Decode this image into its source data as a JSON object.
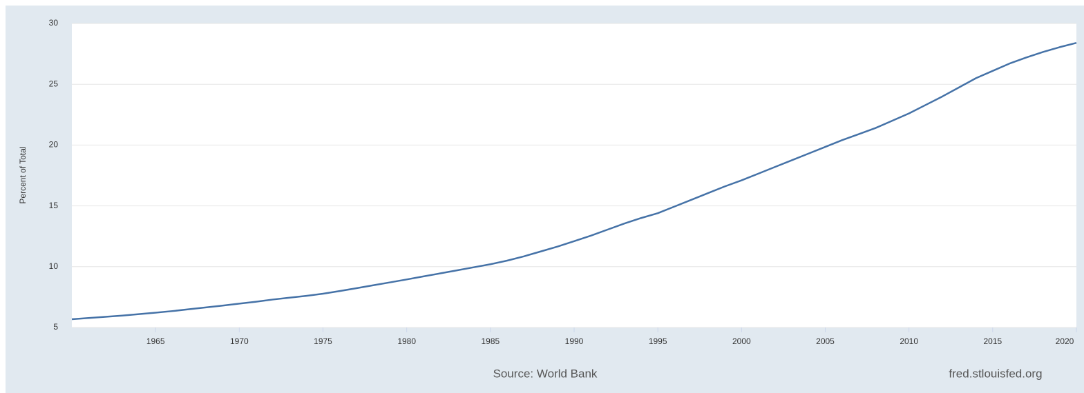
{
  "chart_data": {
    "type": "line",
    "y_label": "Percent of Total",
    "source": "Source: World Bank",
    "credit": "fred.stlouisfed.org",
    "x": [
      1960,
      1961,
      1962,
      1963,
      1964,
      1965,
      1966,
      1967,
      1968,
      1969,
      1970,
      1971,
      1972,
      1973,
      1974,
      1975,
      1976,
      1977,
      1978,
      1979,
      1980,
      1981,
      1982,
      1983,
      1984,
      1985,
      1986,
      1987,
      1988,
      1989,
      1990,
      1991,
      1992,
      1993,
      1994,
      1995,
      1996,
      1997,
      1998,
      1999,
      2000,
      2001,
      2002,
      2003,
      2004,
      2005,
      2006,
      2007,
      2008,
      2009,
      2010,
      2011,
      2012,
      2013,
      2014,
      2015,
      2016,
      2017,
      2018,
      2019,
      2020
    ],
    "series": [
      {
        "name": "Percent of Total",
        "color": "#4572a7",
        "values": [
          5.68,
          5.78,
          5.88,
          5.98,
          6.1,
          6.22,
          6.35,
          6.5,
          6.65,
          6.8,
          6.96,
          7.12,
          7.3,
          7.45,
          7.6,
          7.78,
          8.0,
          8.23,
          8.47,
          8.71,
          8.95,
          9.2,
          9.45,
          9.7,
          9.95,
          10.2,
          10.5,
          10.85,
          11.25,
          11.65,
          12.1,
          12.55,
          13.05,
          13.55,
          14.0,
          14.4,
          14.95,
          15.5,
          16.05,
          16.6,
          17.1,
          17.65,
          18.2,
          18.75,
          19.3,
          19.85,
          20.4,
          20.9,
          21.4,
          22.0,
          22.6,
          23.3,
          24.0,
          24.75,
          25.5,
          26.1,
          26.7,
          27.2,
          27.65,
          28.05,
          28.4
        ]
      }
    ],
    "xlim": [
      1960,
      2020
    ],
    "xticks": [
      1965,
      1970,
      1975,
      1980,
      1985,
      1990,
      1995,
      2000,
      2005,
      2010,
      2015,
      2020
    ],
    "ylim": [
      5,
      30
    ],
    "yticks": [
      5,
      10,
      15,
      20,
      25,
      30
    ],
    "grid": true
  }
}
